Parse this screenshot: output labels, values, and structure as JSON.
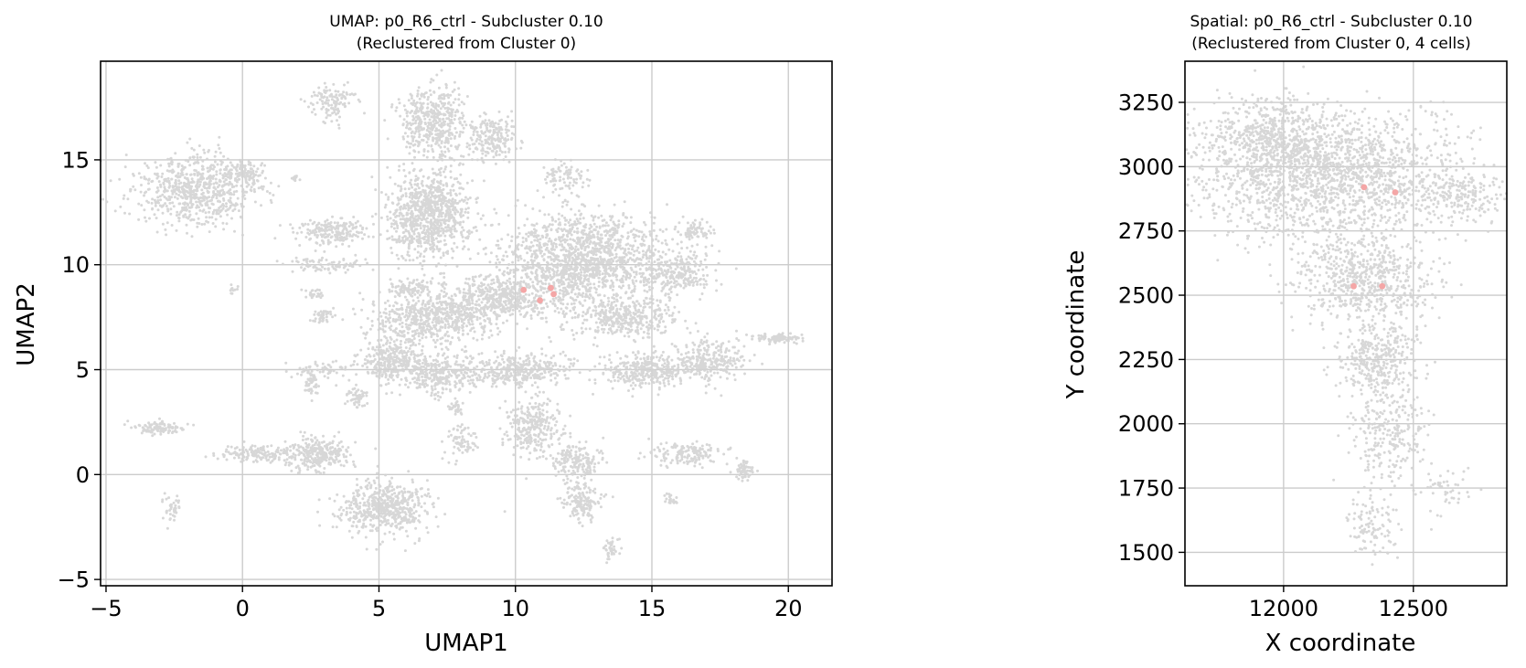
{
  "chart_data": [
    {
      "type": "scatter",
      "title": "UMAP: p0_R6_ctrl - Subcluster 0.10",
      "subtitle": "(Reclustered from Cluster 0)",
      "xlabel": "UMAP1",
      "ylabel": "UMAP2",
      "xlim": [
        -5.2,
        21.6
      ],
      "ylim": [
        -5.3,
        19.7
      ],
      "xticks": [
        -5,
        0,
        5,
        10,
        15,
        20
      ],
      "xtick_labels": [
        "−5",
        "0",
        "5",
        "10",
        "15",
        "20"
      ],
      "yticks": [
        -5,
        0,
        5,
        10,
        15
      ],
      "ytick_labels": [
        "−5",
        "0",
        "5",
        "10",
        "15"
      ],
      "grid": true,
      "background_color": "#d3d3d3",
      "highlight_color": "#f4a6a6",
      "background_regions": [
        {
          "cx": -1.8,
          "cy": 13.5,
          "rx": 2.2,
          "ry": 1.7,
          "n": 700
        },
        {
          "cx": 0.1,
          "cy": 14.4,
          "rx": 0.8,
          "ry": 0.6,
          "n": 120
        },
        {
          "cx": 3.2,
          "cy": 11.6,
          "rx": 1.4,
          "ry": 0.7,
          "n": 200
        },
        {
          "cx": 2.9,
          "cy": 7.6,
          "rx": 0.4,
          "ry": 0.4,
          "n": 40
        },
        {
          "cx": 2.6,
          "cy": 8.6,
          "rx": 0.3,
          "ry": 0.3,
          "n": 25
        },
        {
          "cx": 2.5,
          "cy": 4.3,
          "rx": 0.3,
          "ry": 0.6,
          "n": 40
        },
        {
          "cx": 3.0,
          "cy": 5.0,
          "rx": 1.2,
          "ry": 0.5,
          "n": 60
        },
        {
          "cx": 3.2,
          "cy": 10.0,
          "rx": 1.8,
          "ry": 0.4,
          "n": 80
        },
        {
          "cx": 3.3,
          "cy": 17.8,
          "rx": 0.8,
          "ry": 0.8,
          "n": 120
        },
        {
          "cx": 6.8,
          "cy": 12.4,
          "rx": 1.5,
          "ry": 2.2,
          "n": 900
        },
        {
          "cx": 7.0,
          "cy": 16.8,
          "rx": 1.2,
          "ry": 1.6,
          "n": 450
        },
        {
          "cx": 9.2,
          "cy": 16.0,
          "rx": 0.9,
          "ry": 1.0,
          "n": 200
        },
        {
          "cx": 11.8,
          "cy": 14.1,
          "rx": 0.8,
          "ry": 0.8,
          "n": 80
        },
        {
          "cx": 12.5,
          "cy": 10.2,
          "rx": 3.2,
          "ry": 2.2,
          "n": 1500
        },
        {
          "cx": 9.5,
          "cy": 8.4,
          "rx": 2.4,
          "ry": 1.0,
          "n": 500
        },
        {
          "cx": 7.0,
          "cy": 7.4,
          "rx": 2.2,
          "ry": 1.2,
          "n": 600
        },
        {
          "cx": 5.5,
          "cy": 5.4,
          "rx": 1.2,
          "ry": 1.0,
          "n": 300
        },
        {
          "cx": 7.3,
          "cy": 4.8,
          "rx": 1.3,
          "ry": 0.9,
          "n": 300
        },
        {
          "cx": 10.2,
          "cy": 5.0,
          "rx": 1.8,
          "ry": 0.8,
          "n": 350
        },
        {
          "cx": 14.8,
          "cy": 5.0,
          "rx": 1.7,
          "ry": 0.8,
          "n": 350
        },
        {
          "cx": 17.2,
          "cy": 5.5,
          "rx": 1.2,
          "ry": 1.0,
          "n": 250
        },
        {
          "cx": 14.0,
          "cy": 7.4,
          "rx": 1.8,
          "ry": 0.9,
          "n": 350
        },
        {
          "cx": 16.0,
          "cy": 9.6,
          "rx": 1.3,
          "ry": 1.0,
          "n": 200
        },
        {
          "cx": 16.6,
          "cy": 11.6,
          "rx": 0.6,
          "ry": 0.5,
          "n": 60
        },
        {
          "cx": 19.6,
          "cy": 6.5,
          "rx": 0.9,
          "ry": 0.25,
          "n": 90
        },
        {
          "cx": 10.6,
          "cy": 2.3,
          "rx": 1.0,
          "ry": 1.3,
          "n": 280
        },
        {
          "cx": 12.2,
          "cy": 0.6,
          "rx": 0.9,
          "ry": 0.9,
          "n": 180
        },
        {
          "cx": 12.5,
          "cy": -1.3,
          "rx": 0.8,
          "ry": 0.9,
          "n": 150
        },
        {
          "cx": 13.5,
          "cy": -3.5,
          "rx": 0.3,
          "ry": 0.6,
          "n": 40
        },
        {
          "cx": 16.2,
          "cy": 1.0,
          "rx": 1.4,
          "ry": 0.6,
          "n": 150
        },
        {
          "cx": 18.4,
          "cy": 0.2,
          "rx": 0.3,
          "ry": 0.5,
          "n": 60
        },
        {
          "cx": 5.2,
          "cy": -1.6,
          "rx": 1.6,
          "ry": 1.2,
          "n": 550
        },
        {
          "cx": 2.8,
          "cy": 1.0,
          "rx": 1.2,
          "ry": 0.8,
          "n": 280
        },
        {
          "cx": 0.5,
          "cy": 1.0,
          "rx": 1.3,
          "ry": 0.4,
          "n": 150
        },
        {
          "cx": -3.0,
          "cy": 2.2,
          "rx": 1.0,
          "ry": 0.3,
          "n": 110
        },
        {
          "cx": -2.6,
          "cy": -1.5,
          "rx": 0.4,
          "ry": 0.6,
          "n": 40
        },
        {
          "cx": 4.2,
          "cy": 3.7,
          "rx": 0.4,
          "ry": 0.5,
          "n": 50
        },
        {
          "cx": 8.0,
          "cy": 1.6,
          "rx": 0.6,
          "ry": 0.8,
          "n": 70
        },
        {
          "cx": 6.1,
          "cy": 8.9,
          "rx": 0.8,
          "ry": 0.4,
          "n": 80
        },
        {
          "cx": -0.4,
          "cy": 8.8,
          "rx": 0.2,
          "ry": 0.2,
          "n": 10
        },
        {
          "cx": 2.0,
          "cy": 14.1,
          "rx": 0.2,
          "ry": 0.2,
          "n": 10
        },
        {
          "cx": 7.8,
          "cy": 3.2,
          "rx": 0.3,
          "ry": 0.4,
          "n": 30
        },
        {
          "cx": 15.7,
          "cy": -1.2,
          "rx": 0.3,
          "ry": 0.3,
          "n": 20
        }
      ],
      "highlight_points": [
        {
          "x": 10.3,
          "y": 8.8
        },
        {
          "x": 11.3,
          "y": 8.9
        },
        {
          "x": 11.4,
          "y": 8.6
        },
        {
          "x": 10.9,
          "y": 8.3
        }
      ]
    },
    {
      "type": "scatter",
      "title": "Spatial: p0_R6_ctrl - Subcluster 0.10",
      "subtitle": "(Reclustered from Cluster 0, 4 cells)",
      "xlabel": "X coordinate",
      "ylabel": "Y coordinate",
      "xlim": [
        11620,
        12860
      ],
      "ylim": [
        1370,
        3410
      ],
      "xticks": [
        12000,
        12500
      ],
      "xtick_labels": [
        "12000",
        "12500"
      ],
      "yticks": [
        1500,
        1750,
        2000,
        2250,
        2500,
        2750,
        3000,
        3250
      ],
      "ytick_labels": [
        "1500",
        "1750",
        "2000",
        "2250",
        "2500",
        "2750",
        "3000",
        "3250"
      ],
      "grid": true,
      "background_color": "#d3d3d3",
      "highlight_color": "#f4a6a6",
      "background_regions": [
        {
          "cx": 12180,
          "cy": 2960,
          "rx": 520,
          "ry": 240,
          "n": 1800
        },
        {
          "cx": 11950,
          "cy": 3120,
          "rx": 250,
          "ry": 150,
          "n": 500
        },
        {
          "cx": 12680,
          "cy": 2880,
          "rx": 150,
          "ry": 90,
          "n": 160
        },
        {
          "cx": 12300,
          "cy": 2560,
          "rx": 260,
          "ry": 170,
          "n": 650
        },
        {
          "cx": 12360,
          "cy": 2250,
          "rx": 150,
          "ry": 150,
          "n": 350
        },
        {
          "cx": 12400,
          "cy": 1950,
          "rx": 140,
          "ry": 180,
          "n": 250
        },
        {
          "cx": 12340,
          "cy": 1600,
          "rx": 110,
          "ry": 130,
          "n": 110
        },
        {
          "cx": 12620,
          "cy": 1760,
          "rx": 120,
          "ry": 120,
          "n": 50
        }
      ],
      "highlight_points": [
        {
          "x": 12310,
          "y": 2920
        },
        {
          "x": 12430,
          "y": 2900
        },
        {
          "x": 12270,
          "y": 2535
        },
        {
          "x": 12380,
          "y": 2535
        }
      ]
    }
  ]
}
